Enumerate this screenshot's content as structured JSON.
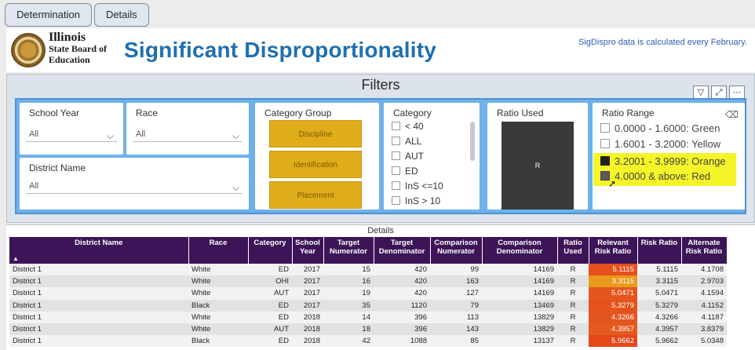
{
  "tabs": [
    "Determination",
    "Details"
  ],
  "header": {
    "logo_lines": [
      "Illinois",
      "State Board of",
      "Education"
    ],
    "title": "Significant Disproportionality",
    "note": "SigDispro data is calculated every February."
  },
  "filters": {
    "title": "Filters",
    "icons": [
      "filter-icon",
      "focus-mode-icon",
      "more-options-icon"
    ],
    "school_year": {
      "label": "School Year",
      "value": "All"
    },
    "race": {
      "label": "Race",
      "value": "All"
    },
    "district_name": {
      "label": "District Name",
      "value": "All"
    },
    "category_group": {
      "label": "Category Group",
      "buttons": [
        "Discipline",
        "Identification",
        "Placement"
      ]
    },
    "category": {
      "label": "Category",
      "items": [
        "< 40",
        "ALL",
        "AUT",
        "ED",
        "InS <=10",
        "InS > 10"
      ]
    },
    "ratio_used": {
      "label": "Ratio Used",
      "value": "R"
    },
    "ratio_range": {
      "label": "Ratio Range",
      "items": [
        {
          "label": "0.0000 - 1.6000: Green",
          "checked": false
        },
        {
          "label": "1.6001 - 3.2000: Yellow",
          "checked": false
        },
        {
          "label": "3.2001 - 3.9999: Orange",
          "checked": true
        },
        {
          "label": "4.0000 & above: Red",
          "checked": true
        }
      ],
      "highlight_color": "#f4f429"
    }
  },
  "details": {
    "title": "Details",
    "columns": [
      "District Name",
      "Race",
      "Category",
      "School Year",
      "Target Numerator",
      "Target Denominator",
      "Comparison Numerator",
      "Comparison Denominator",
      "Ratio Used",
      "Relevant Risk Ratio",
      "Risk Ratio",
      "Alternate Risk Ratio"
    ],
    "rows": [
      [
        "District 1",
        "White",
        "ED",
        "2017",
        "15",
        "420",
        "99",
        "14169",
        "R",
        "5.1115",
        "5.1115",
        "4.1708"
      ],
      [
        "District 1",
        "White",
        "OHI",
        "2017",
        "16",
        "420",
        "163",
        "14169",
        "R",
        "3.3115",
        "3.3115",
        "2.9703"
      ],
      [
        "District 1",
        "White",
        "AUT",
        "2017",
        "19",
        "420",
        "127",
        "14169",
        "R",
        "5.0471",
        "5.0471",
        "4.1594"
      ],
      [
        "District 1",
        "Black",
        "ED",
        "2017",
        "35",
        "1120",
        "79",
        "13469",
        "R",
        "5.3279",
        "5.3279",
        "4.1152"
      ],
      [
        "District 1",
        "White",
        "ED",
        "2018",
        "14",
        "396",
        "113",
        "13829",
        "R",
        "4.3266",
        "4.3266",
        "4.1187"
      ],
      [
        "District 1",
        "White",
        "AUT",
        "2018",
        "18",
        "396",
        "143",
        "13829",
        "R",
        "4.3957",
        "4.3957",
        "3.8379"
      ],
      [
        "District 1",
        "Black",
        "ED",
        "2018",
        "42",
        "1088",
        "85",
        "13137",
        "R",
        "5.9662",
        "5.9662",
        "5.0348"
      ]
    ],
    "relevant_colors": [
      "#e5501d",
      "#e89a1c",
      "#e5561f",
      "#e5521c",
      "#e4541f",
      "#e55a1f",
      "#e3471a"
    ]
  }
}
